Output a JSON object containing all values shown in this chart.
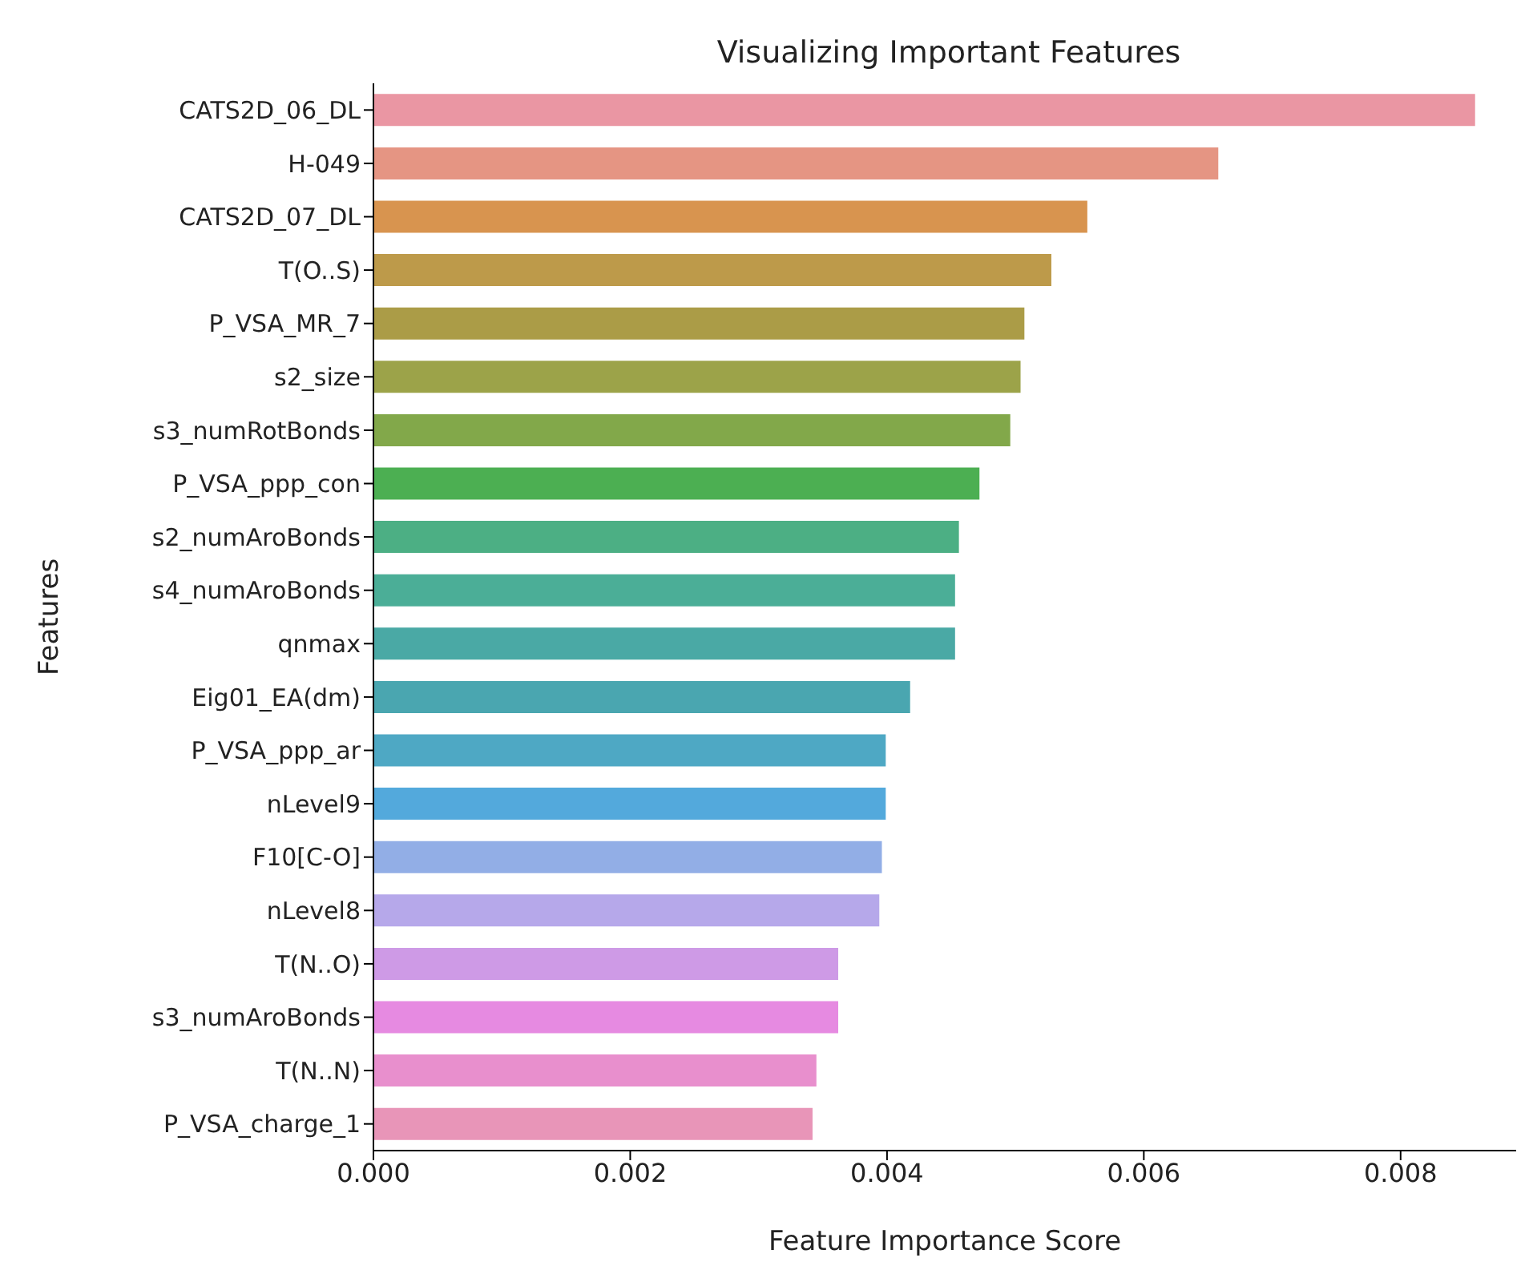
{
  "chart_data": {
    "type": "bar",
    "orientation": "horizontal",
    "title": "Visualizing Important Features",
    "xlabel": "Feature Importance Score",
    "ylabel": "Features",
    "categories": [
      "CATS2D_06_DL",
      "H-049",
      "CATS2D_07_DL",
      "T(O..S)",
      "P_VSA_MR_7",
      "s2_size",
      "s3_numRotBonds",
      "P_VSA_ppp_con",
      "s2_numAroBonds",
      "s4_numAroBonds",
      "qnmax",
      "Eig01_EA(dm)",
      "P_VSA_ppp_ar",
      "nLevel9",
      "F10[C-O]",
      "nLevel8",
      "T(N..O)",
      "s3_numAroBonds",
      "T(N..N)",
      "P_VSA_charge_1"
    ],
    "values": [
      0.00858,
      0.00658,
      0.00556,
      0.00528,
      0.00507,
      0.00504,
      0.00496,
      0.00472,
      0.00456,
      0.00453,
      0.00453,
      0.00418,
      0.00399,
      0.00399,
      0.00396,
      0.00394,
      0.00362,
      0.00362,
      0.00345,
      0.00342
    ],
    "colors": [
      "#ea96a3",
      "#e59583",
      "#d8944f",
      "#bd9a4a",
      "#ab9c47",
      "#9ca349",
      "#82a84a",
      "#4caf52",
      "#4caf84",
      "#4bae97",
      "#4aa9a5",
      "#4aa6b0",
      "#4ea8c4",
      "#53a9dc",
      "#92aee6",
      "#b6a8ea",
      "#ce9ae6",
      "#e68ae1",
      "#e88fcd",
      "#e895b8"
    ],
    "xlim": [
      0,
      0.0089
    ],
    "xticks": [
      {
        "value": 0,
        "label": "0.000"
      },
      0.002,
      0.004,
      0.006,
      0.008
    ],
    "grid": false,
    "legend": false
  }
}
